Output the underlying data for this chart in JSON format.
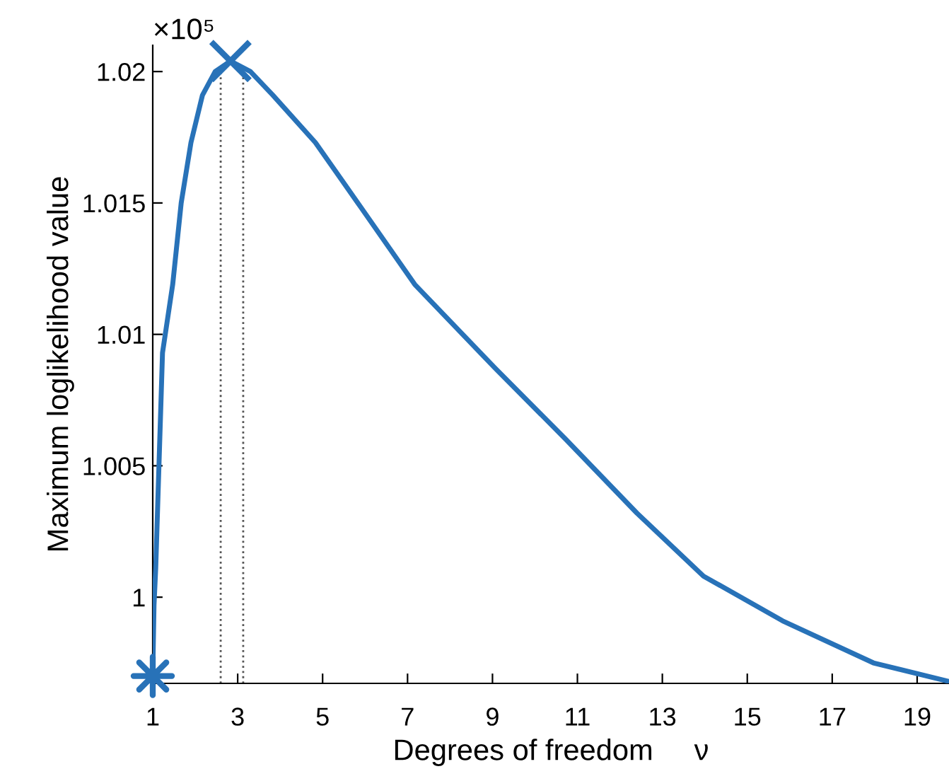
{
  "chart_data": {
    "type": "line",
    "xlabel": "Degrees of freedom     ν",
    "ylabel": "Maximum loglikelihood value",
    "annotations": [
      "×10⁵"
    ],
    "xlim": [
      1,
      19.75
    ],
    "xticks": [
      1,
      3,
      5,
      7,
      9,
      11,
      13,
      15,
      17,
      19
    ],
    "ylim": [
      0.99672,
      1.021
    ],
    "yticks": [
      1,
      1.005,
      1.01,
      1.015,
      1.02
    ],
    "grid": false,
    "line_style": "solid",
    "series": [
      {
        "color": "#2872b8",
        "marker": "none",
        "x": [
          1,
          1.03,
          1.07,
          1.23,
          1.47,
          1.67,
          1.9,
          2.17,
          2.47,
          2.83,
          3.3,
          3.83,
          4.83,
          5.83,
          7.17,
          9.07,
          10.73,
          12.4,
          13.97,
          15.83,
          17.97,
          19.73
        ],
        "values": [
          0.997,
          0.9997,
          1.0011,
          1.0093,
          1.0119,
          1.015,
          1.0173,
          1.0191,
          1.02,
          1.0204,
          1.02,
          1.0191,
          1.0173,
          1.015,
          1.0119,
          1.0087,
          1.006,
          1.0032,
          1.0008,
          0.9991,
          0.9975,
          0.9968
        ]
      },
      {
        "type": "scatter",
        "color": "#2872b8",
        "marker": "star",
        "x": [
          1
        ],
        "values": [
          0.997
        ]
      },
      {
        "type": "scatter",
        "color": "#2872b8",
        "marker": "cross",
        "x": [
          2.83
        ],
        "values": [
          1.0204
        ]
      }
    ],
    "ref_lines": [
      {
        "axis": "x",
        "value": 2.6,
        "color": "#555555",
        "line_style": "dotted"
      },
      {
        "axis": "x",
        "value": 3.13,
        "color": "#555555",
        "line_style": "dotted"
      }
    ]
  }
}
